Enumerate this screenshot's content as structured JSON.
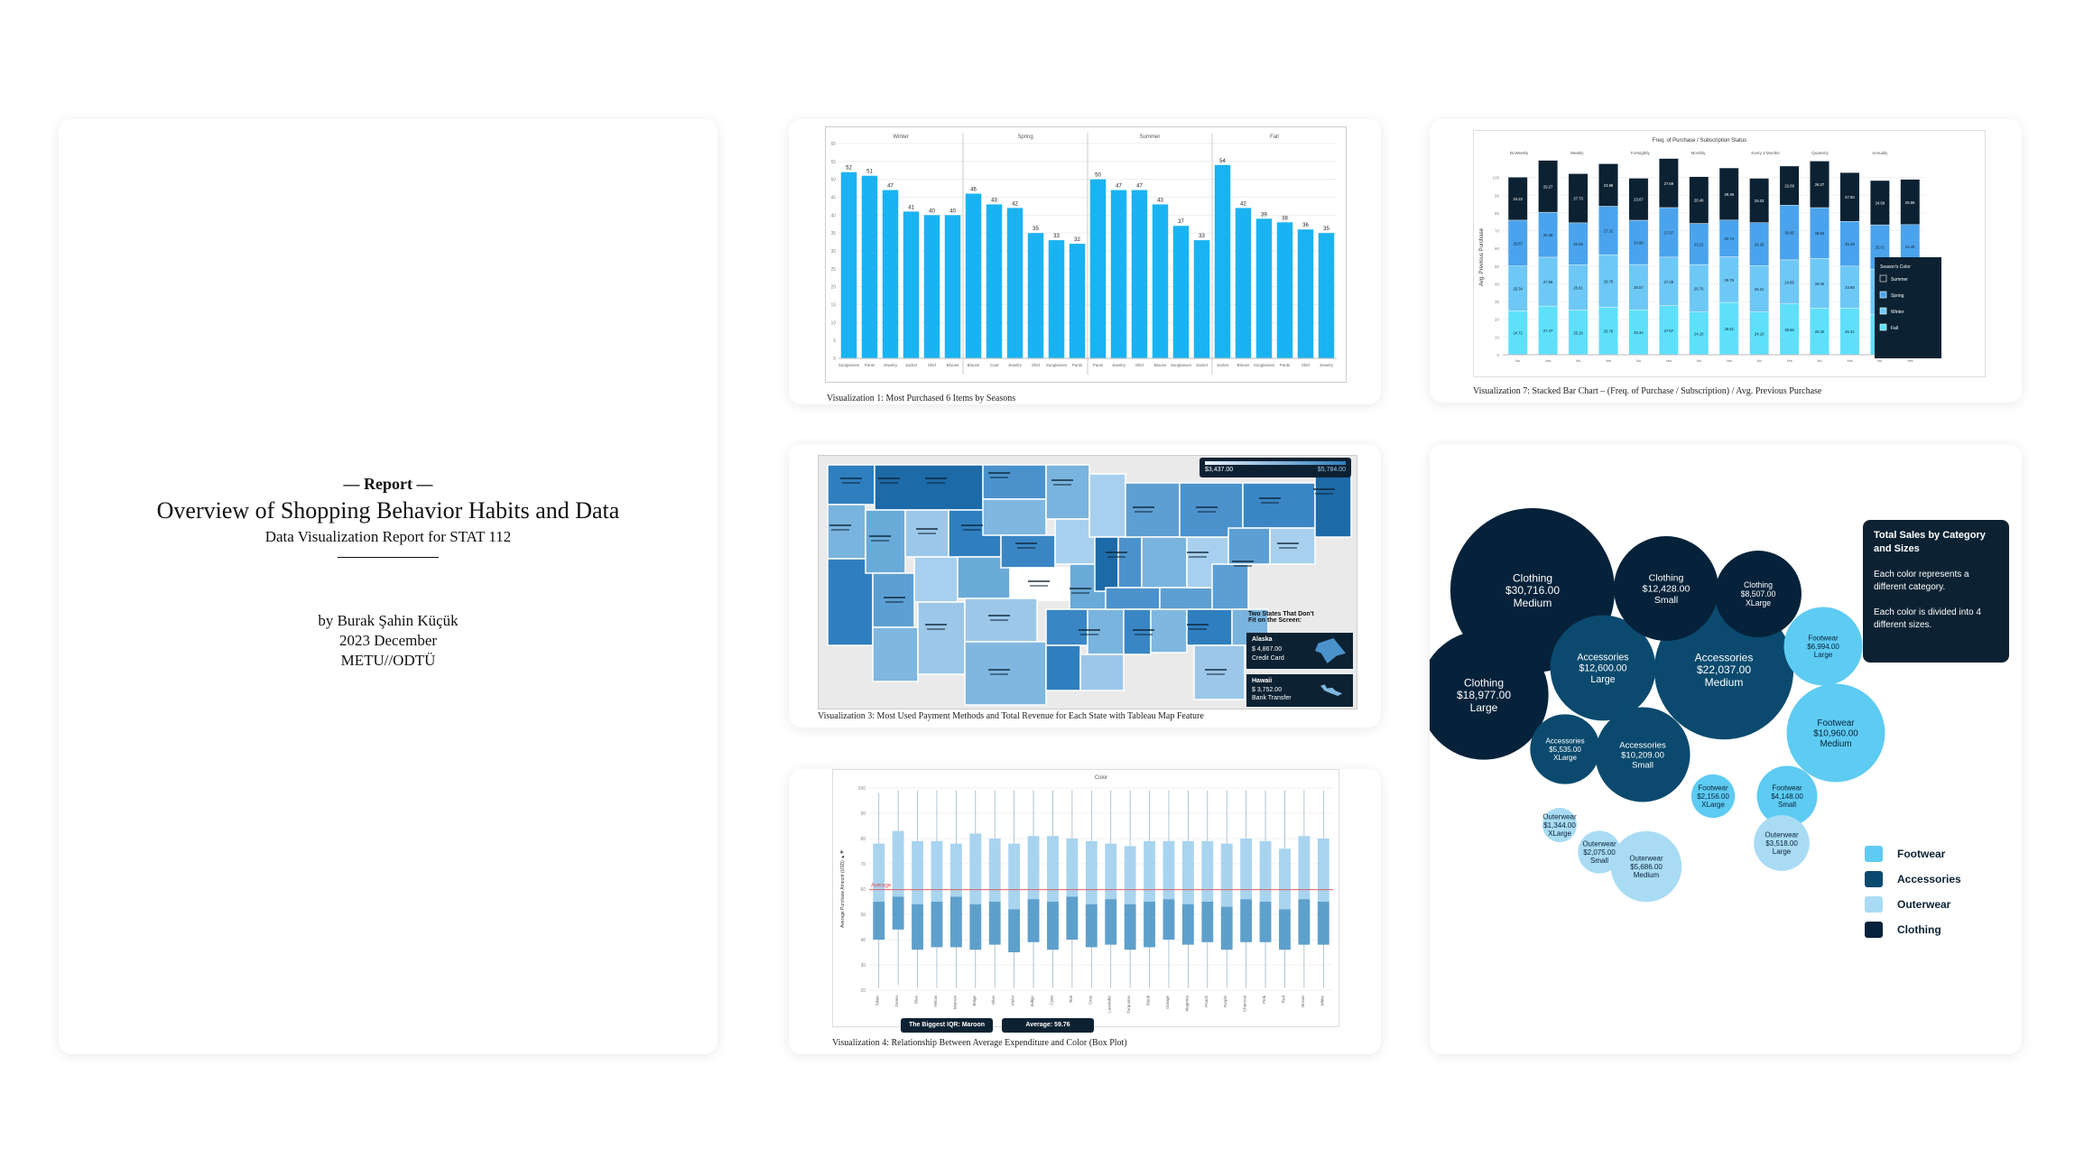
{
  "report": {
    "kicker": "— Report —",
    "title": "Overview of Shopping Behavior Habits and Data",
    "subtitle": "Data Visualization Report for STAT 112",
    "author": "by Burak Şahin Küçük",
    "date": "2023 December",
    "institution": "METU//ODTÜ"
  },
  "captions": {
    "viz1": "Visualization 1: Most Purchased 6 Items by Seasons",
    "viz3": "Visualization 3: Most Used Payment Methods and Total Revenue for Each State with Tableau Map Feature",
    "viz4": "Visualization 4: Relationship Between Average Expenditure and Color (Box Plot)",
    "viz7": "Visualization 7: Stacked Bar Chart – (Freq. of Purchase / Subscription) / Avg. Previous Purchase"
  },
  "viz3": {
    "range_min": "$3,437.00",
    "range_max": "$5,784.00",
    "callout": "Two States That Don't Fit on the Screen:",
    "alaska": {
      "name": "Alaska",
      "value": "$ 4,867.00",
      "method": "Credit Card"
    },
    "hawaii": {
      "name": "Hawaii",
      "value": "$ 3,752.00",
      "method": "Bank Transfer"
    }
  },
  "viz4": {
    "header": "Color",
    "y_label": "Average Purchase Amount (USD) ▲ ₱",
    "avg_label": "Average",
    "chip1": "The Biggest IQR: Maroon",
    "chip2": "Average: 59.76"
  },
  "viz7": {
    "title": "Freq. of Purchase / Subscription Status",
    "y_label": "Avg. Previous Purchase",
    "legend_title": "Season's Color",
    "legend": [
      "Summer",
      "Spring",
      "Winter",
      "Fall"
    ]
  },
  "bubble": {
    "info_title": "Total Sales by Category and Sizes",
    "info_p1": "Each color represents a different category.",
    "info_p2": "Each color is divided into 4 different sizes.",
    "legend": [
      {
        "label": "Footwear",
        "color": "#5ecbf2"
      },
      {
        "label": "Accessories",
        "color": "#0b4a6e"
      },
      {
        "label": "Outerwear",
        "color": "#a9dcf4"
      },
      {
        "label": "Clothing",
        "color": "#06223a"
      }
    ]
  },
  "chart_data": [
    {
      "type": "bar",
      "title": "",
      "facets": [
        "Winter",
        "Spring",
        "Summer",
        "Fall"
      ],
      "ylim": [
        0,
        60
      ],
      "yticks": [
        0,
        5,
        10,
        15,
        20,
        25,
        30,
        35,
        40,
        45,
        50,
        55,
        60
      ],
      "series": [
        {
          "facet": "Winter",
          "categories": [
            "Sunglasses",
            "Pants",
            "Jewelry",
            "Jacket",
            "Shirt",
            "Blouse"
          ],
          "values": [
            52,
            51,
            47,
            41,
            40,
            40
          ]
        },
        {
          "facet": "Spring",
          "categories": [
            "Blouse",
            "Coat",
            "Jewelry",
            "Shirt",
            "Sunglasses",
            "Pants"
          ],
          "values": [
            46,
            43,
            42,
            35,
            33,
            32
          ]
        },
        {
          "facet": "Summer",
          "categories": [
            "Pants",
            "Jewelry",
            "Shirt",
            "Blouse",
            "Sunglasses",
            "Jacket"
          ],
          "values": [
            50,
            47,
            47,
            43,
            37,
            33
          ]
        },
        {
          "facet": "Fall",
          "categories": [
            "Jacket",
            "Blouse",
            "Sunglasses",
            "Pants",
            "Shirt",
            "Jewelry"
          ],
          "values": [
            54,
            42,
            39,
            38,
            36,
            35
          ]
        }
      ]
    },
    {
      "type": "bar",
      "stacked": true,
      "title": "Freq. of Purchase / Subscription Status",
      "ylabel": "Avg. Previous Purchase",
      "ylim": [
        0,
        110
      ],
      "yticks": [
        0,
        10,
        20,
        30,
        40,
        50,
        60,
        70,
        80,
        90,
        100
      ],
      "groups": [
        "Bi-Weekly",
        "Weekly",
        "Fortnightly",
        "Monthly",
        "Every 3 Months",
        "Quarterly",
        "Annually"
      ],
      "categories": [
        "No",
        "Yes",
        "No",
        "Yes",
        "No",
        "Yes",
        "No",
        "Yes",
        "No",
        "Yes",
        "No",
        "Yes",
        "No",
        "Yes"
      ],
      "series": [
        {
          "name": "Fall",
          "values": [
            24.72,
            27.47,
            25.16,
            26.76,
            25.34,
            27.67,
            24.1,
            29.51,
            24.1,
            28.66,
            26.32,
            26.31,
            22.64,
            22.98
          ]
        },
        {
          "name": "Winter",
          "values": [
            25.34,
            27.56,
            25.61,
            29.7,
            25.57,
            27.39,
            26.76,
            25.75,
            26.21,
            24.85,
            28.05,
            23.68,
            25.64,
            25.97
          ]
        },
        {
          "name": "Spring",
          "values": [
            25.87,
            25.38,
            23.65,
            27.31,
            24.99,
            27.97,
            23.22,
            20.74,
            24.2,
            30.85,
            28.63,
            25.29,
            25.01,
            24.46
          ]
        },
        {
          "name": "Summer",
          "values": [
            24.22,
            29.27,
            27.73,
            23.98,
            23.67,
            27.69,
            26.4,
            29.39,
            25.03,
            22.09,
            26.27,
            27.5,
            24.99,
            25.56
          ]
        }
      ]
    },
    {
      "type": "box",
      "title": "",
      "ylabel": "Average Purchase Amount (USD) ▲ ₱",
      "ylim": [
        20,
        100
      ],
      "yticks": [
        20,
        30,
        40,
        50,
        60,
        70,
        80,
        90,
        100
      ],
      "average": 59.76,
      "categories": [
        "Silver",
        "Green",
        "Blue",
        "Yellow",
        "Maroon",
        "Beige",
        "Olive",
        "Violet",
        "Indigo",
        "Cyan",
        "Teal",
        "Gray",
        "Lavender",
        "Turquoise",
        "Black",
        "Orange",
        "Magenta",
        "Peach",
        "Purple",
        "Charcoal",
        "Pink",
        "Red",
        "Brown",
        "White"
      ],
      "q1": [
        40,
        44,
        36,
        37,
        37,
        36,
        38,
        35,
        39,
        36,
        40,
        37,
        38,
        36,
        37,
        40,
        38,
        39,
        36,
        39,
        39,
        36,
        38,
        38
      ],
      "median": [
        55,
        57,
        54,
        55,
        57,
        54,
        55,
        52,
        56,
        55,
        57,
        54,
        56,
        54,
        55,
        56,
        54,
        55,
        53,
        56,
        55,
        52,
        56,
        55
      ],
      "q3": [
        78,
        83,
        79,
        79,
        78,
        82,
        80,
        78,
        81,
        81,
        80,
        79,
        78,
        77,
        79,
        79,
        79,
        79,
        78,
        80,
        79,
        76,
        81,
        80
      ],
      "low": [
        21,
        22,
        21,
        21,
        21,
        21,
        21,
        21,
        21,
        21,
        21,
        21,
        21,
        21,
        21,
        21,
        21,
        21,
        21,
        21,
        21,
        21,
        21,
        21
      ],
      "high": [
        98,
        99,
        99,
        99,
        99,
        99,
        99,
        99,
        99,
        99,
        99,
        99,
        99,
        99,
        99,
        99,
        99,
        99,
        99,
        99,
        99,
        99,
        99,
        99
      ]
    },
    {
      "type": "bubble",
      "title": "Total Sales by Category and Sizes",
      "points": [
        {
          "category": "Clothing",
          "size": "Medium",
          "value": 30716.0,
          "label": "$30,716.00"
        },
        {
          "category": "Accessories",
          "size": "Medium",
          "value": 22037.0,
          "label": "$22,037.00"
        },
        {
          "category": "Clothing",
          "size": "Large",
          "value": 18977.0,
          "label": "$18,977.00"
        },
        {
          "category": "Accessories",
          "size": "Large",
          "value": 12600.0,
          "label": "$12,600.00"
        },
        {
          "category": "Clothing",
          "size": "Small",
          "value": 12428.0,
          "label": "$12,428.00"
        },
        {
          "category": "Footwear",
          "size": "Medium",
          "value": 10960.0,
          "label": "$10,960.00"
        },
        {
          "category": "Accessories",
          "size": "Small",
          "value": 10209.0,
          "label": "$10,209.00"
        },
        {
          "category": "Clothing",
          "size": "XLarge",
          "value": 8507.0,
          "label": "$8,507.00"
        },
        {
          "category": "Footwear",
          "size": "Large",
          "value": 6994.0,
          "label": "$6,994.00"
        },
        {
          "category": "Outerwear",
          "size": "Medium",
          "value": 5686.0,
          "label": "$5,686.00"
        },
        {
          "category": "Accessories",
          "size": "XLarge",
          "value": 5535.0,
          "label": "$5,535.00"
        },
        {
          "category": "Footwear",
          "size": "Small",
          "value": 4148.0,
          "label": "$4,148.00"
        },
        {
          "category": "Outerwear",
          "size": "Large",
          "value": 3518.0,
          "label": "$3,518.00"
        },
        {
          "category": "Footwear",
          "size": "XLarge",
          "value": 2156.0,
          "label": "$2,156.00"
        },
        {
          "category": "Outerwear",
          "size": "Small",
          "value": 2075.0,
          "label": "$2,075.00"
        },
        {
          "category": "Outerwear",
          "size": "XLarge",
          "value": 1344.0,
          "label": "$1,344.00"
        }
      ]
    }
  ]
}
